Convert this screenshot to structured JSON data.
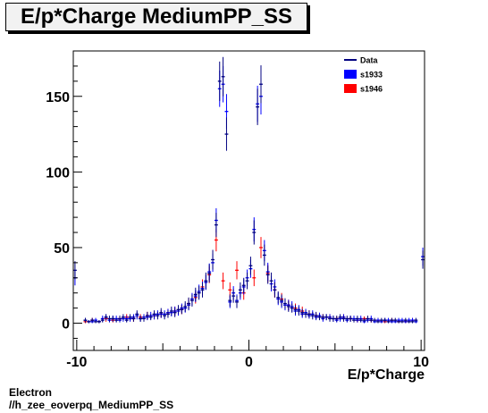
{
  "title": "E/p*Charge MediumPP_SS",
  "footer": {
    "line1": "Electron",
    "line2": "//h_zee_eoverpq_MediumPP_SS"
  },
  "colors": {
    "data": "#000080",
    "s1933": "#0000ff",
    "s1946": "#ff0000"
  },
  "chart_data": {
    "type": "scatter",
    "title": "E/p*Charge MediumPP_SS",
    "xlabel": "E/p*Charge",
    "ylabel": "",
    "xlim": [
      -10.2,
      10.2
    ],
    "ylim": [
      -18,
      180
    ],
    "xticks": [
      -10,
      0,
      10
    ],
    "yticks": [
      0,
      50,
      100,
      150
    ],
    "grid": false,
    "legend_position": "top-right",
    "legend": [
      "Data",
      "s1933",
      "s1946"
    ],
    "series": [
      {
        "name": "Data",
        "style": "crosses",
        "x": [
          -10.1,
          -9.5,
          -9.3,
          -9.1,
          -8.9,
          -8.7,
          -8.5,
          -8.3,
          -8.1,
          -7.9,
          -7.7,
          -7.5,
          -7.3,
          -7.1,
          -6.9,
          -6.7,
          -6.5,
          -6.3,
          -6.1,
          -5.9,
          -5.7,
          -5.5,
          -5.3,
          -5.1,
          -4.9,
          -4.7,
          -4.5,
          -4.3,
          -4.1,
          -3.9,
          -3.7,
          -3.5,
          -3.3,
          -3.1,
          -2.9,
          -2.7,
          -2.5,
          -2.3,
          -2.1,
          -1.9,
          -1.7,
          -1.5,
          -1.3,
          -1.1,
          -0.9,
          -0.7,
          -0.5,
          -0.3,
          -0.1,
          0.1,
          0.3,
          0.5,
          0.7,
          0.9,
          1.1,
          1.3,
          1.5,
          1.7,
          1.9,
          2.1,
          2.3,
          2.5,
          2.7,
          2.9,
          3.1,
          3.3,
          3.5,
          3.7,
          3.9,
          4.1,
          4.3,
          4.5,
          4.7,
          4.9,
          5.1,
          5.3,
          5.5,
          5.7,
          5.9,
          6.1,
          6.3,
          6.5,
          6.7,
          6.9,
          7.1,
          7.3,
          7.5,
          7.7,
          7.9,
          8.1,
          8.3,
          8.5,
          8.7,
          8.9,
          9.1,
          9.3,
          9.5,
          9.7,
          10.1
        ],
        "y": [
          35,
          2,
          1,
          2,
          1,
          1,
          2,
          4,
          3,
          3,
          2,
          3,
          4,
          2,
          4,
          3,
          6,
          3,
          3,
          5,
          4,
          6,
          5,
          7,
          5,
          6,
          8,
          7,
          9,
          9,
          11,
          13,
          15,
          19,
          20,
          22,
          28,
          33,
          42,
          65,
          160,
          163,
          125,
          15,
          18,
          14,
          22,
          25,
          28,
          38,
          60,
          143,
          158,
          45,
          32,
          28,
          22,
          17,
          15,
          13,
          11,
          10,
          9,
          8,
          7,
          6,
          6,
          5,
          5,
          4,
          4,
          4,
          3,
          3,
          3,
          4,
          3,
          3,
          3,
          2,
          3,
          2,
          2,
          3,
          2,
          2,
          1,
          2,
          2,
          1,
          2,
          2,
          1,
          1,
          2,
          1,
          1,
          2,
          42
        ],
        "err": [
          6,
          1.5,
          1,
          1.5,
          1,
          1,
          1.5,
          2,
          2,
          2,
          1.5,
          2,
          2,
          1.5,
          2,
          2,
          2.5,
          2,
          2,
          2.5,
          2,
          2.5,
          2.5,
          3,
          2.5,
          2.5,
          3,
          3,
          3,
          3,
          3.5,
          4,
          4,
          4.5,
          4.5,
          5,
          5.5,
          6,
          6.5,
          8,
          13,
          13,
          11,
          4,
          4.5,
          4,
          5,
          5,
          5.5,
          6,
          8,
          12,
          12.5,
          7,
          6,
          5.5,
          5,
          4,
          4,
          3.5,
          3.5,
          3,
          3,
          3,
          2.5,
          2.5,
          2.5,
          2.5,
          2.5,
          2,
          2,
          2,
          2,
          2,
          2,
          2,
          2,
          2,
          2,
          1.5,
          2,
          1.5,
          1.5,
          2,
          1.5,
          1.5,
          1,
          1.5,
          1.5,
          1,
          1.5,
          1.5,
          1,
          1,
          1.5,
          1,
          1,
          1.5,
          6
        ]
      },
      {
        "name": "s1933",
        "style": "crosses",
        "x": [
          -10.1,
          -9.5,
          -9.3,
          -9.1,
          -8.9,
          -8.7,
          -8.5,
          -8.3,
          -8.1,
          -7.9,
          -7.7,
          -7.5,
          -7.3,
          -7.1,
          -6.9,
          -6.7,
          -6.5,
          -6.3,
          -6.1,
          -5.9,
          -5.7,
          -5.5,
          -5.3,
          -5.1,
          -4.9,
          -4.7,
          -4.5,
          -4.3,
          -4.1,
          -3.9,
          -3.7,
          -3.5,
          -3.3,
          -3.1,
          -2.9,
          -2.7,
          -2.5,
          -2.3,
          -2.1,
          -1.9,
          -1.7,
          -1.5,
          -1.3,
          -1.1,
          -0.9,
          -0.7,
          -0.5,
          -0.3,
          -0.1,
          0.1,
          0.3,
          0.5,
          0.7,
          0.9,
          1.1,
          1.3,
          1.5,
          1.7,
          1.9,
          2.1,
          2.3,
          2.5,
          2.7,
          2.9,
          3.1,
          3.3,
          3.5,
          3.7,
          3.9,
          4.1,
          4.3,
          4.5,
          4.7,
          4.9,
          5.1,
          5.3,
          5.5,
          5.7,
          5.9,
          6.1,
          6.3,
          6.5,
          6.7,
          6.9,
          7.1,
          7.3,
          7.5,
          7.7,
          7.9,
          8.1,
          8.3,
          8.5,
          8.7,
          8.9,
          9.1,
          9.3,
          9.5,
          9.7,
          10.1
        ],
        "y": [
          30,
          2,
          1,
          1,
          2,
          1,
          3,
          4,
          2,
          3,
          3,
          2,
          3,
          3,
          3,
          4,
          5,
          3,
          4,
          4,
          5,
          5,
          6,
          6,
          6,
          7,
          7,
          8,
          8,
          10,
          10,
          12,
          16,
          18,
          21,
          23,
          27,
          34,
          40,
          68,
          155,
          158,
          140,
          14,
          20,
          15,
          20,
          24,
          30,
          36,
          62,
          145,
          150,
          48,
          34,
          26,
          24,
          16,
          14,
          12,
          12,
          11,
          8,
          9,
          6,
          7,
          5,
          6,
          4,
          5,
          3,
          4,
          4,
          3,
          2,
          3,
          4,
          2,
          3,
          3,
          2,
          3,
          1,
          2,
          3,
          1,
          2,
          1,
          2,
          2,
          1,
          1,
          2,
          2,
          1,
          2,
          2,
          1,
          44
        ],
        "err": [
          5,
          1.5,
          1,
          1,
          1.5,
          1,
          2,
          2,
          1.5,
          2,
          2,
          1.5,
          2,
          2,
          2,
          2,
          2.5,
          2,
          2,
          2,
          2.5,
          2.5,
          2.5,
          2.5,
          2.5,
          2.5,
          2.5,
          3,
          3,
          3,
          3,
          3.5,
          4,
          4,
          4.5,
          4.5,
          5,
          5.5,
          6,
          8,
          12,
          12,
          11.5,
          4,
          4.5,
          4,
          4.5,
          5,
          5.5,
          6,
          8,
          12,
          12,
          7,
          6,
          5,
          5,
          4,
          4,
          3.5,
          3.5,
          3.5,
          3,
          3,
          2.5,
          2.5,
          2,
          2.5,
          2,
          2,
          2,
          2,
          2,
          2,
          1.5,
          2,
          2,
          1.5,
          2,
          2,
          1.5,
          2,
          1,
          1.5,
          2,
          1,
          1.5,
          1,
          1.5,
          1.5,
          1,
          1,
          1.5,
          1.5,
          1,
          1.5,
          1.5,
          1,
          6
        ]
      },
      {
        "name": "s1946",
        "style": "crosses",
        "x": [
          -9.5,
          -9.1,
          -8.7,
          -8.3,
          -7.9,
          -7.5,
          -7.1,
          -6.7,
          -6.3,
          -5.9,
          -5.5,
          -5.1,
          -4.7,
          -4.3,
          -3.9,
          -3.5,
          -3.1,
          -2.7,
          -2.3,
          -1.9,
          -1.5,
          -1.1,
          -0.7,
          -0.3,
          0.3,
          0.7,
          1.1,
          1.5,
          1.9,
          2.3,
          2.7,
          3.1,
          3.5,
          3.9,
          4.3,
          4.7,
          5.1,
          5.5,
          5.9,
          6.3,
          6.7,
          7.1,
          7.5,
          7.9,
          8.3,
          8.7,
          9.1,
          9.5
        ],
        "y": [
          1,
          2,
          1,
          3,
          2,
          3,
          4,
          3,
          4,
          5,
          5,
          6,
          7,
          8,
          9,
          13,
          17,
          24,
          32,
          55,
          28,
          22,
          35,
          20,
          30,
          50,
          33,
          22,
          16,
          12,
          10,
          8,
          6,
          5,
          4,
          4,
          3,
          4,
          3,
          2,
          3,
          2,
          2,
          1,
          2,
          1,
          1,
          2
        ],
        "err": [
          1,
          1.5,
          1,
          2,
          1.5,
          2,
          2,
          2,
          2,
          2.5,
          2.5,
          2.5,
          2.5,
          3,
          3,
          3.5,
          4,
          5,
          5.5,
          7.5,
          5.5,
          5,
          6,
          4.5,
          5.5,
          7,
          6,
          5,
          4,
          3.5,
          3,
          3,
          2.5,
          2,
          2,
          2,
          1.5,
          2,
          1.5,
          1.5,
          1.5,
          1.5,
          1.5,
          1,
          1.5,
          1,
          1,
          1.5
        ]
      }
    ]
  }
}
